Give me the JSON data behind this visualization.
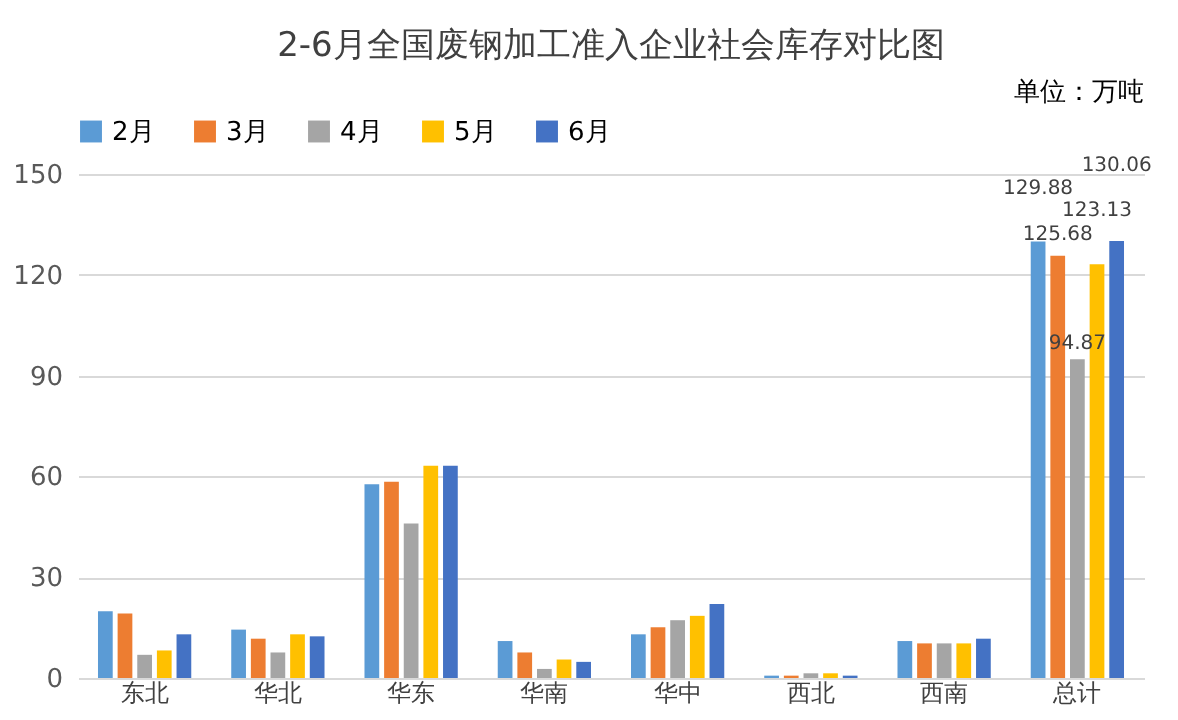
{
  "chart_data": {
    "type": "bar",
    "title": "2-6月全国废钢加工准入企业社会库存对比图",
    "annotations": [
      "单位：万吨"
    ],
    "categories": [
      "东北",
      "华北",
      "华东",
      "华南",
      "华中",
      "西北",
      "西南",
      "总计"
    ],
    "series": [
      {
        "name": "2月",
        "color": "#5b9bd5",
        "values": [
          19.9,
          14.4,
          57.7,
          11.0,
          13.0,
          0.7,
          11.0,
          129.88
        ],
        "value_labels": [
          null,
          null,
          null,
          null,
          null,
          null,
          null,
          "129.88"
        ]
      },
      {
        "name": "3月",
        "color": "#ed7d31",
        "values": [
          19.2,
          11.7,
          58.4,
          7.6,
          15.1,
          0.7,
          10.3,
          125.68
        ],
        "value_labels": [
          null,
          null,
          null,
          null,
          null,
          null,
          null,
          "125.68"
        ]
      },
      {
        "name": "4月",
        "color": "#a5a5a5",
        "values": [
          6.9,
          7.6,
          46.0,
          2.7,
          17.2,
          1.4,
          10.3,
          94.87
        ],
        "value_labels": [
          null,
          null,
          null,
          null,
          null,
          null,
          null,
          "94.87"
        ]
      },
      {
        "name": "5月",
        "color": "#ffc000",
        "values": [
          8.2,
          13.0,
          63.2,
          5.5,
          18.5,
          1.4,
          10.3,
          123.13
        ],
        "value_labels": [
          null,
          null,
          null,
          null,
          null,
          null,
          null,
          "123.13"
        ]
      },
      {
        "name": "6月",
        "color": "#4472c4",
        "values": [
          13.0,
          12.4,
          63.2,
          4.8,
          22.0,
          0.7,
          11.7,
          130.06
        ],
        "value_labels": [
          null,
          null,
          null,
          null,
          null,
          null,
          null,
          "130.06"
        ]
      }
    ],
    "ylim": [
      0,
      150
    ],
    "yticks": [
      0,
      30,
      60,
      90,
      120,
      150
    ],
    "grid": "y",
    "legend": "top"
  }
}
